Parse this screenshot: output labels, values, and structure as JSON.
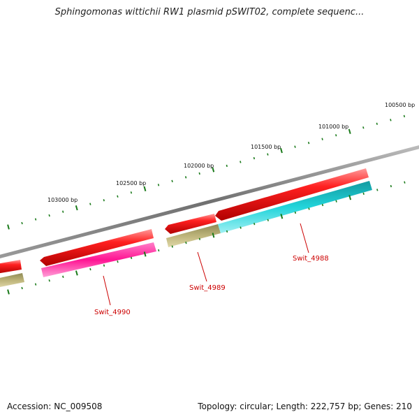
{
  "title": "Sphingomonas wittichii RW1 plasmid pSWIT02, complete sequenc...",
  "ticks": [
    {
      "label": "103000 bp"
    },
    {
      "label": "102500 bp"
    },
    {
      "label": "102000 bp"
    },
    {
      "label": "101500 bp"
    },
    {
      "label": "101000 bp"
    },
    {
      "label": "100500 bp"
    }
  ],
  "genes": [
    {
      "label": "Swit_4990"
    },
    {
      "label": "Swit_4989"
    },
    {
      "label": "Swit_4988"
    }
  ],
  "footer": {
    "accession": "Accession: NC_009508",
    "info": "Topology: circular; Length: 222,757 bp; Genes: 210"
  },
  "colors": {
    "backbone": "#7a7a7a",
    "cds": "#ee0000",
    "gene_swit4990": "#ff1493",
    "gene_swit4989": "#b8b072",
    "gene_swit4988": "#22d0d8",
    "ticks": "#1a7a1a",
    "labels": "#cc0000"
  }
}
